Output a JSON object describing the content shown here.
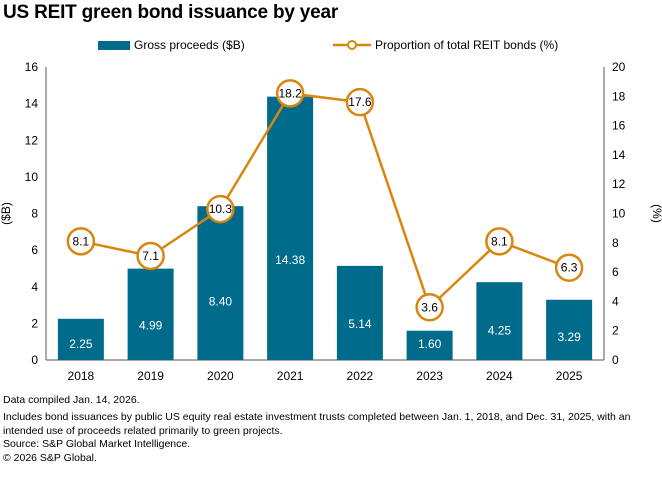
{
  "chart_data": {
    "type": "bar+line",
    "title": "US REIT green bond issuance by year",
    "categories": [
      "2018",
      "2019",
      "2020",
      "2021",
      "2022",
      "2023",
      "2024",
      "2025"
    ],
    "series": [
      {
        "name": "Gross proceeds ($B)",
        "type": "bar",
        "axis": "left",
        "values": [
          2.25,
          4.99,
          8.4,
          14.38,
          5.14,
          1.6,
          4.25,
          3.29
        ],
        "labels": [
          "2.25",
          "4.99",
          "8.40",
          "14.38",
          "5.14",
          "1.60",
          "4.25",
          "3.29"
        ],
        "color": "#006b8a"
      },
      {
        "name": "Proportion of total REIT bonds (%)",
        "type": "line",
        "axis": "right",
        "values": [
          8.1,
          7.1,
          10.3,
          18.2,
          17.6,
          3.6,
          8.1,
          6.3
        ],
        "labels": [
          "8.1",
          "7.1",
          "10.3",
          "18.2",
          "17.6",
          "3.6",
          "8.1",
          "6.3"
        ],
        "color": "#d9860f"
      }
    ],
    "y_left": {
      "label": "($B)",
      "ylim": [
        0,
        16
      ],
      "ticks": [
        "0",
        "2",
        "4",
        "6",
        "8",
        "10",
        "12",
        "14",
        "16"
      ]
    },
    "y_right": {
      "label": "(%)",
      "ylim": [
        0,
        20
      ],
      "ticks": [
        "0",
        "2",
        "4",
        "6",
        "8",
        "10",
        "12",
        "14",
        "16",
        "18",
        "20"
      ]
    },
    "grid": false,
    "legend_position": "top"
  },
  "notes": {
    "compiled": "Data compiled Jan. 14, 2026.",
    "includes": "Includes bond issuances by public US equity real estate investment trusts completed between Jan. 1, 2018, and Dec. 31, 2025, with an intended use of proceeds related primarily to green projects.",
    "source": "Source: S&P Global Market Intelligence.",
    "copyright": "© 2026 S&P Global."
  }
}
